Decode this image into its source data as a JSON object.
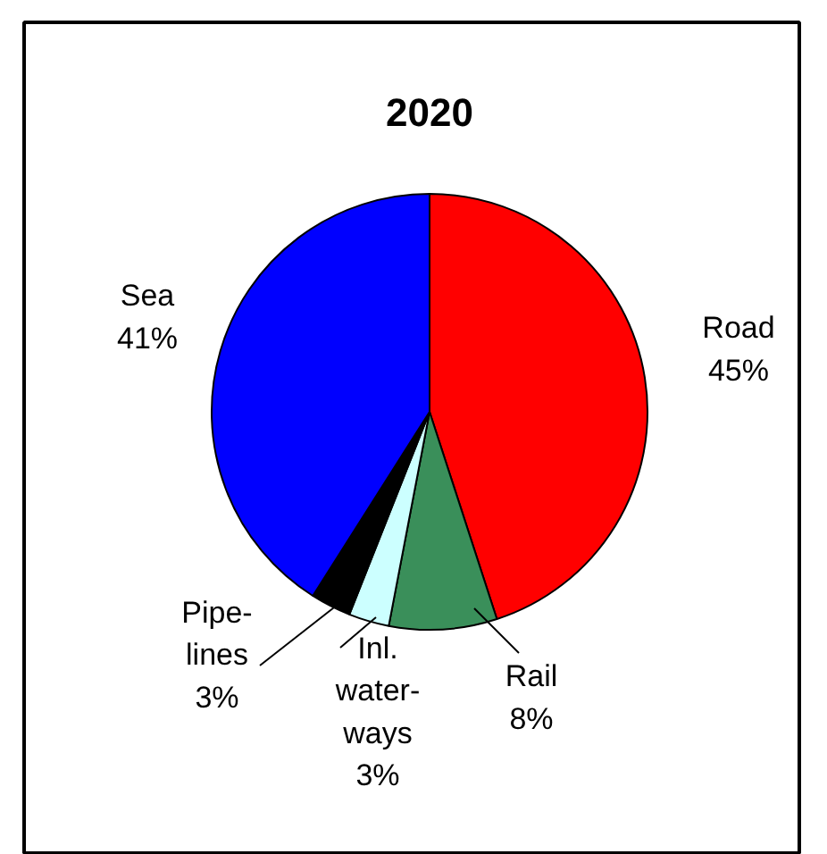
{
  "chart_data": {
    "type": "pie",
    "title": "2020",
    "categories": [
      "Road",
      "Rail",
      "Inl.\nwater-\nways",
      "Pipe-\nlines",
      "Sea"
    ],
    "values": [
      45,
      8,
      3,
      3,
      41
    ],
    "value_labels": [
      "45%",
      "8%",
      "3%",
      "3%",
      "41%"
    ],
    "colors": [
      "#ff0000",
      "#3a8f5a",
      "#ccffff",
      "#000000",
      "#0000ff"
    ]
  }
}
